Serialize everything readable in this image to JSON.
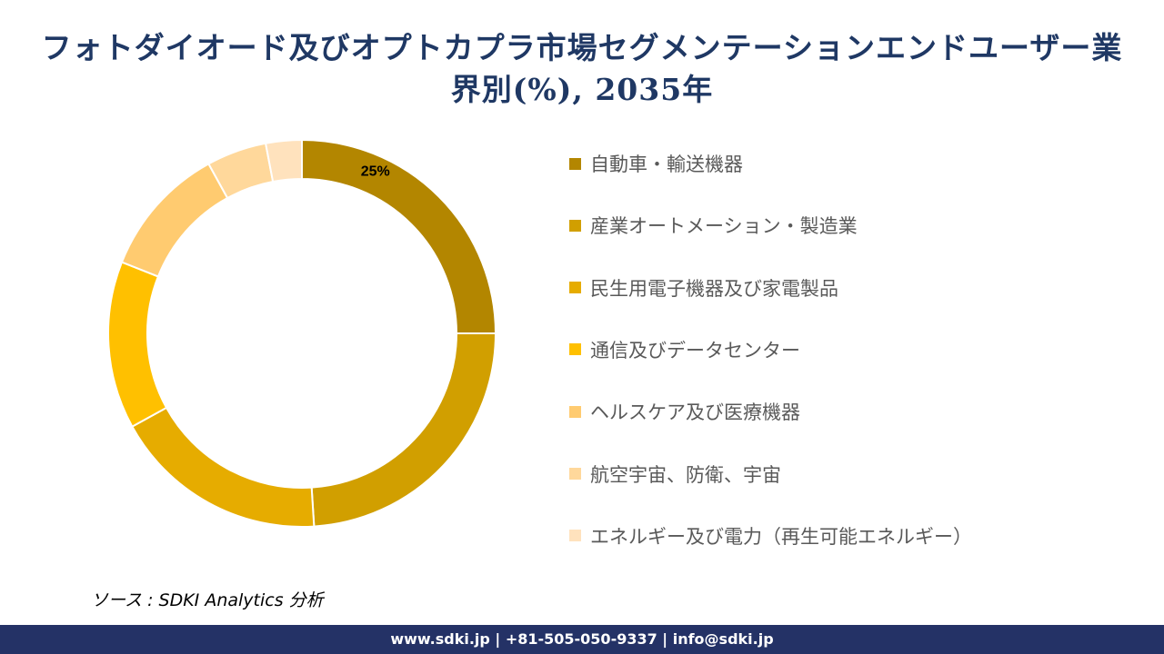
{
  "title": "フォトダイオード及びオプトカプラ市場セグメンテーションエンドユーザー業界別(%), 2035年",
  "chart_data": {
    "type": "donut",
    "title": "フォトダイオード及びオプトカプラ市場セグメンテーションエンドユーザー業界別(%), 2035年",
    "categories": [
      "自動車・輸送機器",
      "産業オートメーション・製造業",
      "民生用電子機器及び家電製品",
      "通信及びデータセンター",
      "ヘルスケア及び医療機器",
      "航空宇宙、防衛、宇宙",
      "エネルギー及び電力（再生可能エネルギー）"
    ],
    "values": [
      25,
      24,
      18,
      14,
      11,
      5,
      3
    ],
    "colors": [
      "#B38600",
      "#D19F00",
      "#E6AC00",
      "#FFC000",
      "#FFCB70",
      "#FFD89B",
      "#FFE2BD"
    ],
    "data_labels": [
      "25%",
      "",
      "",
      "",
      "",
      "",
      ""
    ],
    "legend_position": "right"
  },
  "source": "ソース : SDKI Analytics  分析",
  "footer": "www.sdki.jp | +81-505-050-9337 | info@sdki.jp"
}
